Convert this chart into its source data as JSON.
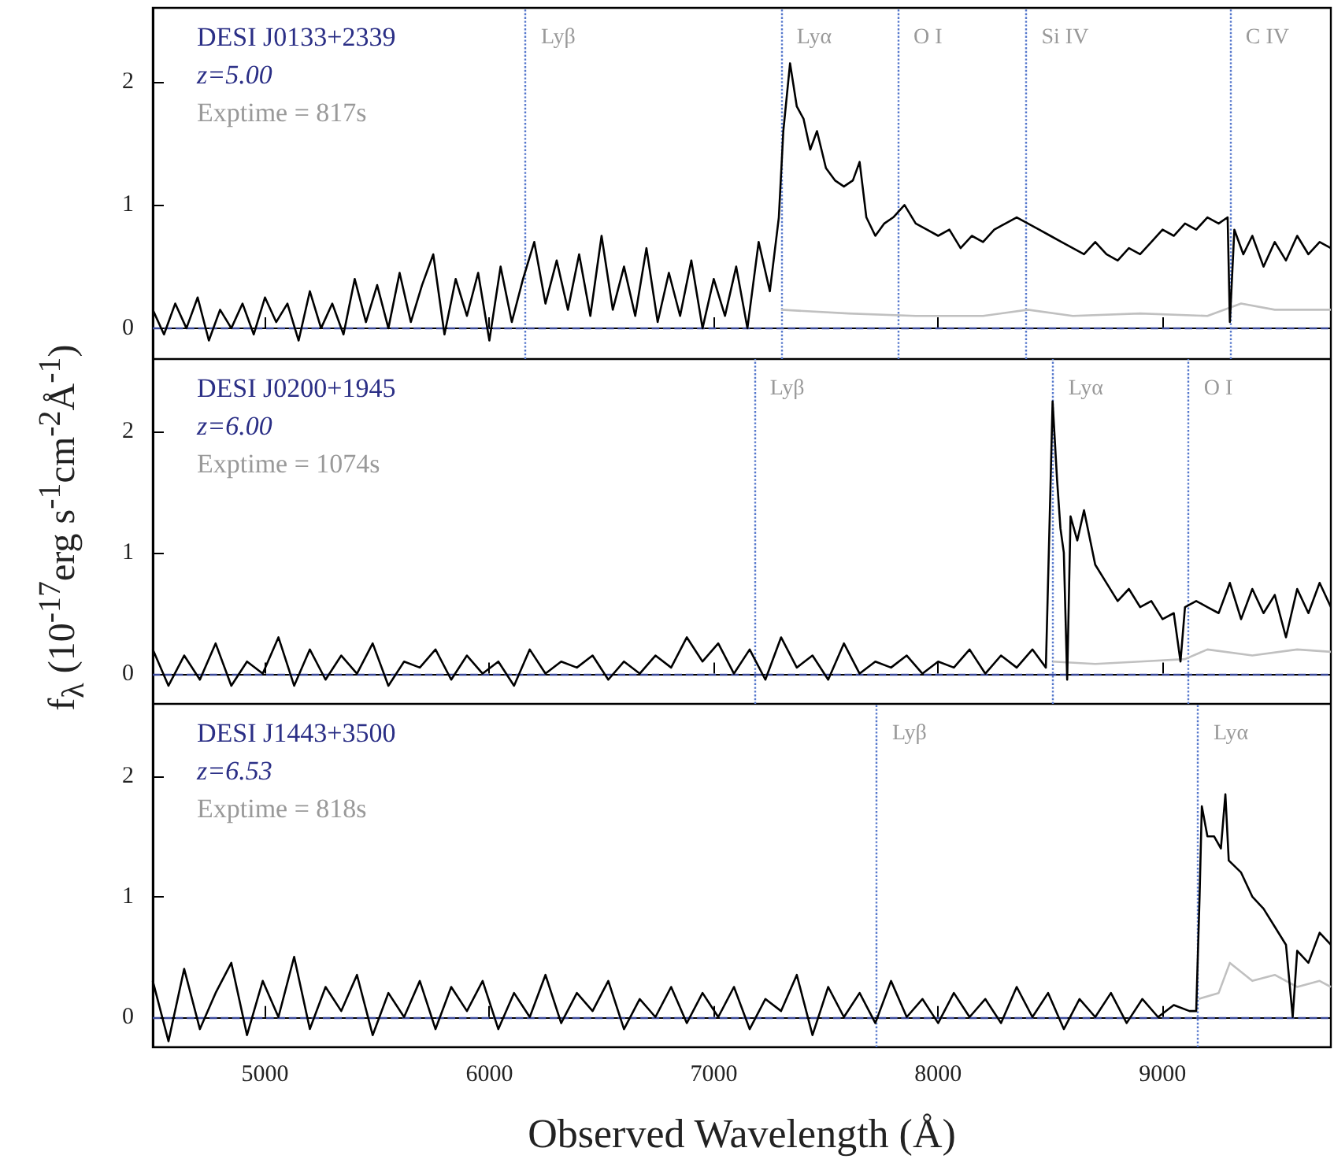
{
  "chart_data": [
    {
      "type": "line",
      "annotations": [
        "DESI J0133+2339",
        "z=5.00",
        "Exptime = 817s"
      ],
      "xlim": [
        4500,
        9750
      ],
      "xticks": [
        5000,
        6000,
        7000,
        8000,
        9000
      ],
      "ylim": [
        -0.25,
        2.6
      ],
      "yticks": [
        0,
        1,
        2
      ],
      "tick_labels": "y",
      "marker": "none",
      "series": [
        {
          "color": "#000000",
          "x": [
            4500,
            4550,
            4600,
            4650,
            4700,
            4750,
            4800,
            4850,
            4900,
            4950,
            5000,
            5050,
            5100,
            5150,
            5200,
            5250,
            5300,
            5350,
            5400,
            5450,
            5500,
            5550,
            5600,
            5650,
            5700,
            5750,
            5800,
            5850,
            5900,
            5950,
            6000,
            6050,
            6100,
            6150,
            6200,
            6250,
            6300,
            6350,
            6400,
            6450,
            6500,
            6550,
            6600,
            6650,
            6700,
            6750,
            6800,
            6850,
            6900,
            6950,
            7000,
            7050,
            7100,
            7150,
            7200,
            7250,
            7290,
            7310,
            7340,
            7370,
            7400,
            7430,
            7460,
            7500,
            7540,
            7580,
            7620,
            7650,
            7680,
            7720,
            7760,
            7800,
            7850,
            7900,
            7950,
            8000,
            8050,
            8100,
            8150,
            8200,
            8250,
            8300,
            8350,
            8400,
            8450,
            8500,
            8550,
            8600,
            8650,
            8700,
            8750,
            8800,
            8850,
            8900,
            8950,
            9000,
            9050,
            9100,
            9150,
            9200,
            9250,
            9290,
            9300,
            9320,
            9360,
            9400,
            9450,
            9500,
            9550,
            9600,
            9650,
            9700,
            9750
          ],
          "values": [
            0.15,
            -0.05,
            0.2,
            0.0,
            0.25,
            -0.1,
            0.15,
            0.0,
            0.2,
            -0.05,
            0.25,
            0.05,
            0.2,
            -0.1,
            0.3,
            0.0,
            0.2,
            -0.05,
            0.4,
            0.05,
            0.35,
            0.0,
            0.45,
            0.05,
            0.35,
            0.6,
            -0.05,
            0.4,
            0.1,
            0.45,
            -0.1,
            0.5,
            0.05,
            0.4,
            0.7,
            0.2,
            0.55,
            0.15,
            0.6,
            0.1,
            0.75,
            0.15,
            0.5,
            0.1,
            0.65,
            0.05,
            0.45,
            0.1,
            0.55,
            0.0,
            0.4,
            0.1,
            0.5,
            0.0,
            0.7,
            0.3,
            0.9,
            1.6,
            2.15,
            1.8,
            1.7,
            1.45,
            1.6,
            1.3,
            1.2,
            1.15,
            1.2,
            1.35,
            0.9,
            0.75,
            0.85,
            0.9,
            1.0,
            0.85,
            0.8,
            0.75,
            0.8,
            0.65,
            0.75,
            0.7,
            0.8,
            0.85,
            0.9,
            0.85,
            0.8,
            0.75,
            0.7,
            0.65,
            0.6,
            0.7,
            0.6,
            0.55,
            0.65,
            0.6,
            0.7,
            0.8,
            0.75,
            0.85,
            0.8,
            0.9,
            0.85,
            0.9,
            0.05,
            0.8,
            0.6,
            0.75,
            0.5,
            0.7,
            0.55,
            0.75,
            0.6,
            0.7,
            0.65
          ]
        },
        {
          "color": "#c0c0c0",
          "x": [
            7300,
            7600,
            7900,
            8200,
            8400,
            8600,
            8900,
            9200,
            9350,
            9500,
            9750
          ],
          "values": [
            0.15,
            0.12,
            0.1,
            0.1,
            0.15,
            0.1,
            0.12,
            0.1,
            0.2,
            0.15,
            0.15
          ]
        }
      ],
      "ref_lines": [
        {
          "axis": "y",
          "value": 0,
          "color": "#3b4a9a",
          "line_style": "dashed"
        },
        {
          "axis": "x",
          "value": 6160,
          "label": "Lyβ",
          "color": "#5577cc",
          "line_style": "dotted"
        },
        {
          "axis": "x",
          "value": 7300,
          "label": "Lyα",
          "color": "#5577cc",
          "line_style": "dotted"
        },
        {
          "axis": "x",
          "value": 7820,
          "label": "O I",
          "color": "#5577cc",
          "line_style": "dotted"
        },
        {
          "axis": "x",
          "value": 8390,
          "label": "Si IV",
          "color": "#5577cc",
          "line_style": "dotted"
        },
        {
          "axis": "x",
          "value": 9300,
          "label": "C IV",
          "color": "#5577cc",
          "line_style": "dotted"
        }
      ]
    },
    {
      "type": "line",
      "ylabel": "f$_{λ}$ (10$^{-17}$erg s$^{-1}$cm$^{-2}$Å$^{-1}$)",
      "annotations": [
        "DESI J0200+1945",
        "z=6.00",
        "Exptime = 1074s"
      ],
      "xlim": [
        4500,
        9750
      ],
      "xticks": [
        5000,
        6000,
        7000,
        8000,
        9000
      ],
      "ylim": [
        -0.25,
        2.6
      ],
      "yticks": [
        0,
        1,
        2
      ],
      "tick_labels": "y",
      "marker": "none",
      "series": [
        {
          "color": "#000000",
          "x": [
            4500,
            4570,
            4640,
            4710,
            4780,
            4850,
            4920,
            4990,
            5060,
            5130,
            5200,
            5270,
            5340,
            5410,
            5480,
            5550,
            5620,
            5690,
            5760,
            5830,
            5900,
            5970,
            6040,
            6110,
            6180,
            6250,
            6320,
            6390,
            6460,
            6530,
            6600,
            6670,
            6740,
            6810,
            6880,
            6950,
            7020,
            7090,
            7160,
            7230,
            7300,
            7370,
            7440,
            7510,
            7580,
            7650,
            7720,
            7790,
            7860,
            7930,
            8000,
            8070,
            8140,
            8210,
            8280,
            8350,
            8420,
            8480,
            8500,
            8510,
            8530,
            8545,
            8560,
            8575,
            8590,
            8620,
            8650,
            8700,
            8750,
            8800,
            8850,
            8900,
            8950,
            9000,
            9050,
            9080,
            9100,
            9150,
            9200,
            9250,
            9300,
            9350,
            9400,
            9450,
            9500,
            9550,
            9600,
            9650,
            9700,
            9750
          ],
          "values": [
            0.2,
            -0.1,
            0.15,
            -0.05,
            0.25,
            -0.1,
            0.1,
            0.0,
            0.3,
            -0.1,
            0.2,
            -0.05,
            0.15,
            0.0,
            0.25,
            -0.1,
            0.1,
            0.05,
            0.2,
            -0.05,
            0.15,
            0.0,
            0.1,
            -0.1,
            0.2,
            0.0,
            0.1,
            0.05,
            0.15,
            -0.05,
            0.1,
            0.0,
            0.15,
            0.05,
            0.3,
            0.1,
            0.25,
            0.0,
            0.2,
            -0.05,
            0.3,
            0.05,
            0.15,
            -0.05,
            0.25,
            0.0,
            0.1,
            0.05,
            0.15,
            0.0,
            0.1,
            0.05,
            0.2,
            0.0,
            0.15,
            0.05,
            0.2,
            0.05,
            1.5,
            2.25,
            1.6,
            1.2,
            1.0,
            -0.05,
            1.3,
            1.1,
            1.35,
            0.9,
            0.75,
            0.6,
            0.7,
            0.55,
            0.6,
            0.45,
            0.5,
            0.1,
            0.55,
            0.6,
            0.55,
            0.5,
            0.75,
            0.45,
            0.7,
            0.5,
            0.65,
            0.3,
            0.7,
            0.5,
            0.75,
            0.55
          ]
        },
        {
          "color": "#c0c0c0",
          "x": [
            8510,
            8700,
            8900,
            9100,
            9200,
            9400,
            9600,
            9750
          ],
          "values": [
            0.1,
            0.08,
            0.1,
            0.12,
            0.2,
            0.15,
            0.2,
            0.18
          ]
        }
      ],
      "ref_lines": [
        {
          "axis": "y",
          "value": 0,
          "color": "#3b4a9a",
          "line_style": "dashed"
        },
        {
          "axis": "x",
          "value": 7180,
          "label": "Lyβ",
          "color": "#5577cc",
          "line_style": "dotted"
        },
        {
          "axis": "x",
          "value": 8510,
          "label": "Lyα",
          "color": "#5577cc",
          "line_style": "dotted"
        },
        {
          "axis": "x",
          "value": 9114,
          "label": "O I",
          "color": "#5577cc",
          "line_style": "dotted"
        }
      ]
    },
    {
      "type": "line",
      "xlabel": "Observed Wavelength (Å)",
      "annotations": [
        "DESI J1443+3500",
        "z=6.53",
        "Exptime = 818s"
      ],
      "xlim": [
        4500,
        9750
      ],
      "xticks": [
        5000,
        6000,
        7000,
        8000,
        9000
      ],
      "ylim": [
        -0.25,
        2.6
      ],
      "yticks": [
        0,
        1,
        2
      ],
      "marker": "none",
      "series": [
        {
          "color": "#000000",
          "x": [
            4500,
            4570,
            4640,
            4710,
            4780,
            4850,
            4920,
            4990,
            5060,
            5130,
            5200,
            5270,
            5340,
            5410,
            5480,
            5550,
            5620,
            5690,
            5760,
            5830,
            5900,
            5970,
            6040,
            6110,
            6180,
            6250,
            6320,
            6390,
            6460,
            6530,
            6600,
            6670,
            6740,
            6810,
            6880,
            6950,
            7020,
            7090,
            7160,
            7230,
            7300,
            7370,
            7440,
            7510,
            7580,
            7650,
            7720,
            7790,
            7860,
            7930,
            8000,
            8070,
            8140,
            8210,
            8280,
            8350,
            8420,
            8490,
            8560,
            8630,
            8700,
            8770,
            8840,
            8910,
            8980,
            9050,
            9120,
            9150,
            9165,
            9175,
            9200,
            9230,
            9260,
            9280,
            9295,
            9350,
            9400,
            9450,
            9500,
            9550,
            9580,
            9600,
            9650,
            9700,
            9750
          ],
          "values": [
            0.3,
            -0.2,
            0.4,
            -0.1,
            0.2,
            0.45,
            -0.15,
            0.3,
            0.0,
            0.5,
            -0.1,
            0.25,
            0.05,
            0.35,
            -0.15,
            0.2,
            0.0,
            0.3,
            -0.1,
            0.25,
            0.05,
            0.3,
            -0.1,
            0.2,
            0.0,
            0.35,
            -0.05,
            0.2,
            0.05,
            0.3,
            -0.1,
            0.15,
            0.0,
            0.25,
            -0.05,
            0.2,
            0.0,
            0.25,
            -0.1,
            0.15,
            0.05,
            0.35,
            -0.15,
            0.25,
            0.0,
            0.2,
            -0.05,
            0.3,
            0.0,
            0.15,
            -0.05,
            0.2,
            0.0,
            0.15,
            -0.05,
            0.25,
            0.0,
            0.2,
            -0.1,
            0.15,
            0.0,
            0.2,
            -0.05,
            0.15,
            0.0,
            0.1,
            0.05,
            0.05,
            1.0,
            1.75,
            1.5,
            1.5,
            1.4,
            1.85,
            1.3,
            1.2,
            1.0,
            0.9,
            0.75,
            0.6,
            0.0,
            0.55,
            0.45,
            0.7,
            0.6
          ]
        },
        {
          "color": "#c0c0c0",
          "x": [
            9160,
            9250,
            9300,
            9400,
            9500,
            9600,
            9700,
            9750
          ],
          "values": [
            0.15,
            0.2,
            0.45,
            0.3,
            0.35,
            0.25,
            0.3,
            0.25
          ]
        }
      ],
      "ref_lines": [
        {
          "axis": "y",
          "value": 0,
          "color": "#3b4a9a",
          "line_style": "dashed"
        },
        {
          "axis": "x",
          "value": 7725,
          "label": "Lyβ",
          "color": "#5577cc",
          "line_style": "dotted"
        },
        {
          "axis": "x",
          "value": 9157,
          "label": "Lyα",
          "color": "#5577cc",
          "line_style": "dotted"
        }
      ]
    }
  ]
}
